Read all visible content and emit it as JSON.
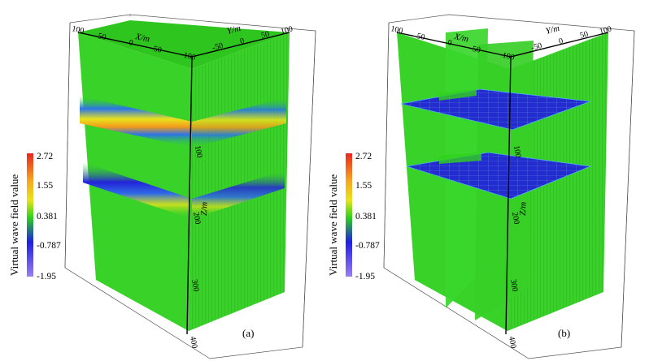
{
  "colorbar": {
    "title": "Virtual wave field value",
    "ticks": [
      "2.72",
      "1.55",
      "0.381",
      "-0.787",
      "-1.95"
    ],
    "colors": [
      "#e8261f",
      "#f5a623",
      "#e9e31c",
      "#2fd21c",
      "#1f1fe0",
      "#9a7ff0"
    ]
  },
  "panels": [
    {
      "label": "(a)",
      "x_axis_label": "X/m",
      "y_axis_label": "Y/m",
      "z_axis_label": "Z/m",
      "x_ticks": [
        "100",
        "50",
        "0",
        "-50",
        "-100"
      ],
      "y_ticks": [
        "-50",
        "0",
        "50",
        "100"
      ],
      "z_ticks": [
        "100",
        "200",
        "300",
        "400"
      ]
    },
    {
      "label": "(b)",
      "x_axis_label": "X/m",
      "y_axis_label": "Y/m",
      "z_axis_label": "Z/m",
      "x_ticks": [
        "100",
        "50",
        "0",
        "-50",
        "-100"
      ],
      "y_ticks": [
        "-50",
        "0",
        "50",
        "100"
      ],
      "z_ticks": [
        "100",
        "200",
        "300",
        "400"
      ]
    }
  ]
}
